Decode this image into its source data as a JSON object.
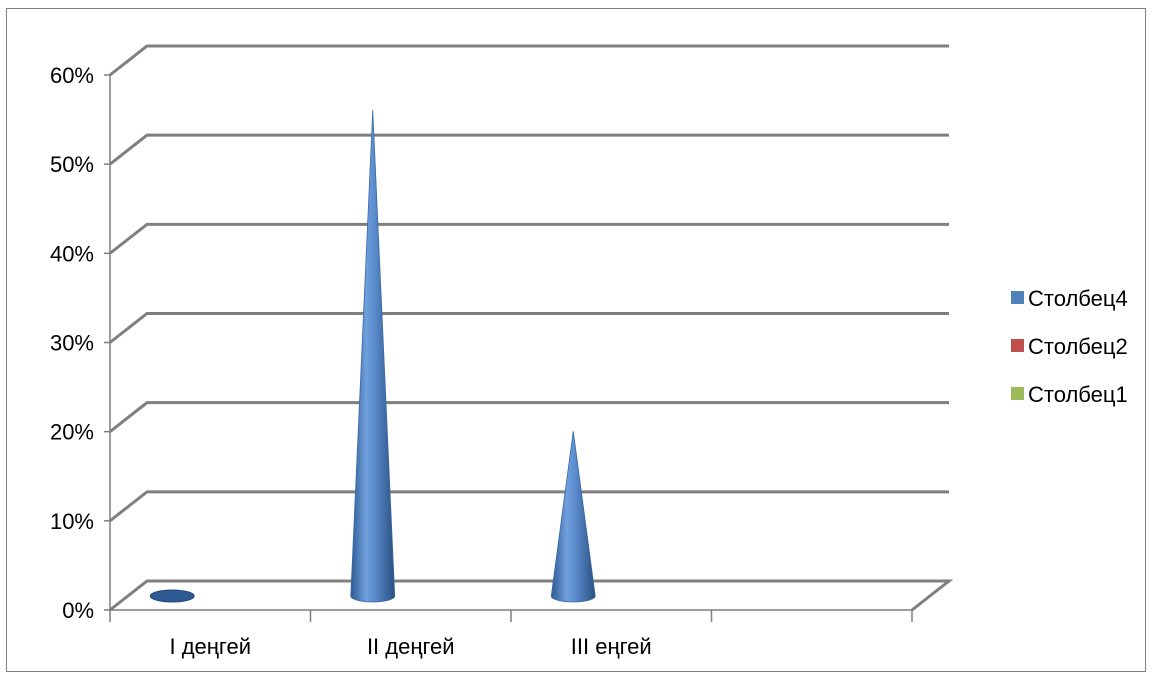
{
  "chart_data": {
    "type": "bar",
    "bar_shape": "cone",
    "view": "3d",
    "categories": [
      "I деңгей",
      "II деңгей",
      "III еңгей",
      ""
    ],
    "series": [
      {
        "name": "Столбец4",
        "values": [
          0,
          0.56,
          0.2,
          null
        ]
      },
      {
        "name": "Столбец2",
        "values": [
          null,
          null,
          null,
          null
        ]
      },
      {
        "name": "Столбец1",
        "values": [
          null,
          null,
          null,
          null
        ]
      }
    ],
    "y_ticks": [
      "0%",
      "10%",
      "20%",
      "30%",
      "40%",
      "50%",
      "60%"
    ],
    "ylim": [
      0,
      0.6
    ],
    "y_format": "percent",
    "grid": true,
    "legend_position": "right",
    "colors": {
      "Столбец4": "#4f81bd",
      "Столбец2": "#c0504d",
      "Столбец1": "#9bbb59",
      "grid": "#7f7f7f"
    }
  }
}
